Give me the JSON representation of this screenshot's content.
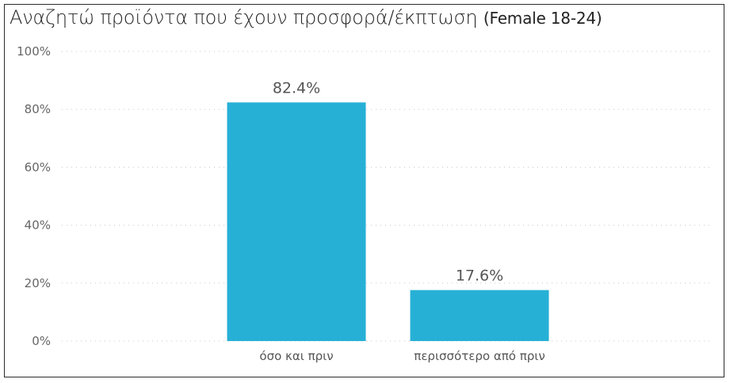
{
  "chart_data": {
    "type": "bar",
    "title": "Αναζητώ προϊόντα που έχουν προσφορά/έκπτωση",
    "subtitle": "(Female 18-24)",
    "categories": [
      "όσο και πριν",
      "περισσότερο από πριν"
    ],
    "values": [
      82.4,
      17.6
    ],
    "data_labels": [
      "82.4%",
      "17.6%"
    ],
    "yticks": [
      "0%",
      "20%",
      "40%",
      "60%",
      "80%",
      "100%"
    ],
    "ylim": [
      0,
      100
    ],
    "grid": true,
    "bar_color": "#27B0D6",
    "grid_color": "#C8C8C8"
  }
}
